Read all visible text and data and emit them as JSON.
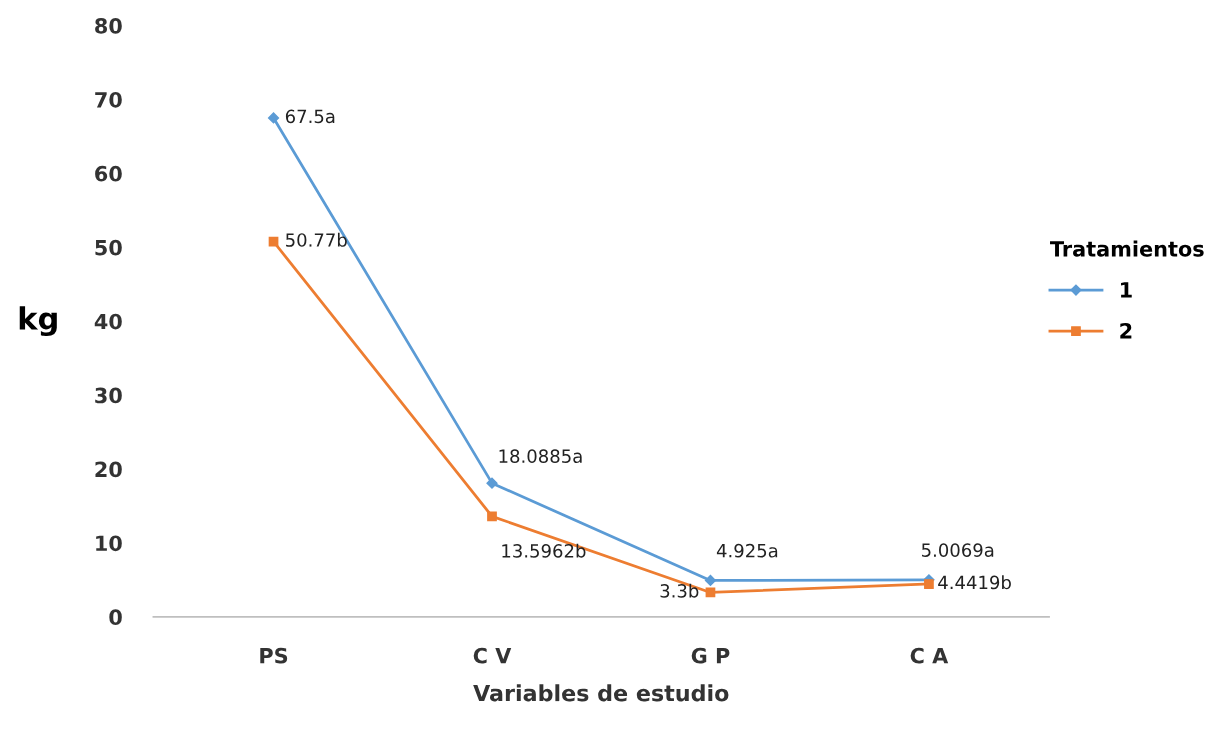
{
  "chart_data": {
    "type": "line",
    "xlabel": "Variables de estudio",
    "ylabel": "kg",
    "categories": [
      "PS",
      "C V",
      "G P",
      "C A"
    ],
    "ylim": [
      0,
      80
    ],
    "yticks": [
      0,
      10,
      20,
      30,
      40,
      50,
      60,
      70,
      80
    ],
    "legend_title": "Tratamientos",
    "legend": "right",
    "grid": false,
    "line_style": "solid",
    "series": [
      {
        "name": "1",
        "color": "#5b9bd5",
        "marker": "diamond",
        "values": [
          67.5,
          18.0885,
          4.925,
          5.0069
        ],
        "value_labels": [
          "67.5a",
          "18.0885a",
          "4.925a",
          "5.0069a"
        ]
      },
      {
        "name": "2",
        "color": "#ed7d31",
        "marker": "square",
        "values": [
          50.77,
          13.5962,
          3.3,
          4.4419
        ],
        "value_labels": [
          "50.77b",
          "13.5962b",
          "3.3b",
          "4.4419b"
        ]
      }
    ]
  }
}
